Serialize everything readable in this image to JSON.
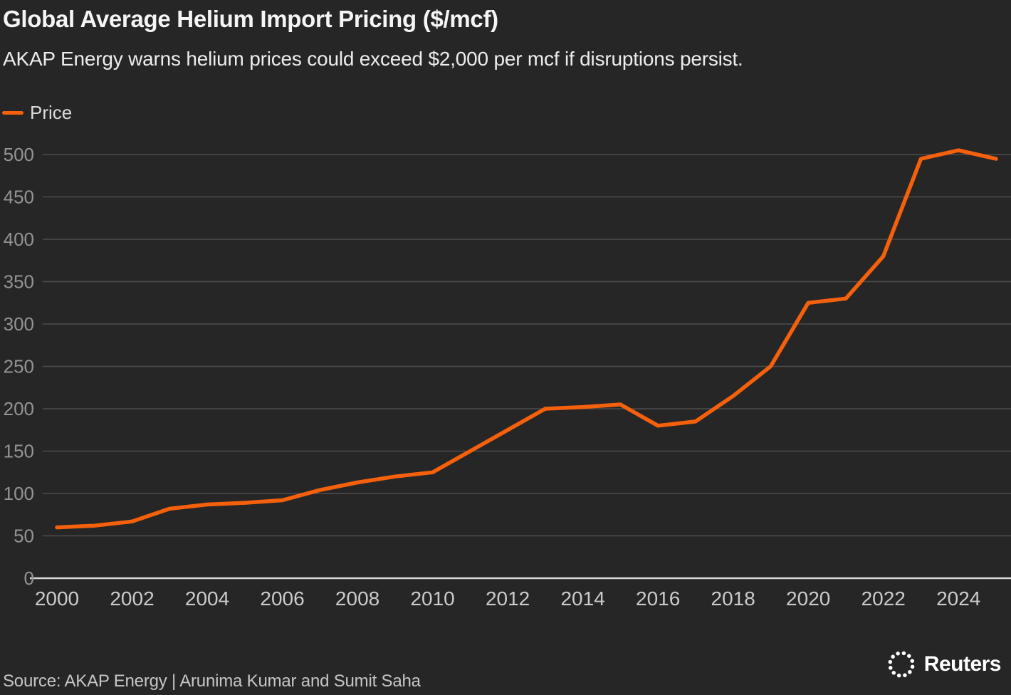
{
  "header": {
    "title": "Global Average Helium Import Pricing ($/mcf)",
    "subtitle": "AKAP Energy warns helium prices could exceed $2,000 per mcf if disruptions persist."
  },
  "legend": {
    "label": "Price"
  },
  "chart_data": {
    "type": "line",
    "title": "Global Average Helium Import Pricing ($/mcf)",
    "xlabel": "",
    "ylabel": "",
    "x": [
      2000,
      2001,
      2002,
      2003,
      2004,
      2005,
      2006,
      2007,
      2008,
      2009,
      2010,
      2011,
      2012,
      2013,
      2014,
      2015,
      2016,
      2017,
      2018,
      2019,
      2020,
      2021,
      2022,
      2023,
      2024,
      2025
    ],
    "series": [
      {
        "name": "Price",
        "values": [
          60,
          62,
          67,
          82,
          87,
          89,
          92,
          104,
          113,
          120,
          125,
          150,
          175,
          200,
          202,
          205,
          180,
          185,
          215,
          250,
          325,
          330,
          380,
          495,
          505,
          495
        ]
      }
    ],
    "x_ticks": [
      2000,
      2002,
      2004,
      2006,
      2008,
      2010,
      2012,
      2014,
      2016,
      2018,
      2020,
      2022,
      2024
    ],
    "y_ticks": [
      0,
      50,
      100,
      150,
      200,
      250,
      300,
      350,
      400,
      450,
      500
    ],
    "xlim": [
      2000,
      2025
    ],
    "ylim": [
      0,
      520
    ],
    "grid": "horizontal",
    "legend_position": "top-left",
    "colors": {
      "line": "#f4600c",
      "background": "#262626"
    }
  },
  "footer": {
    "source": "Source: AKAP Energy | Arunima Kumar and Sumit Saha",
    "brand": "Reuters"
  }
}
